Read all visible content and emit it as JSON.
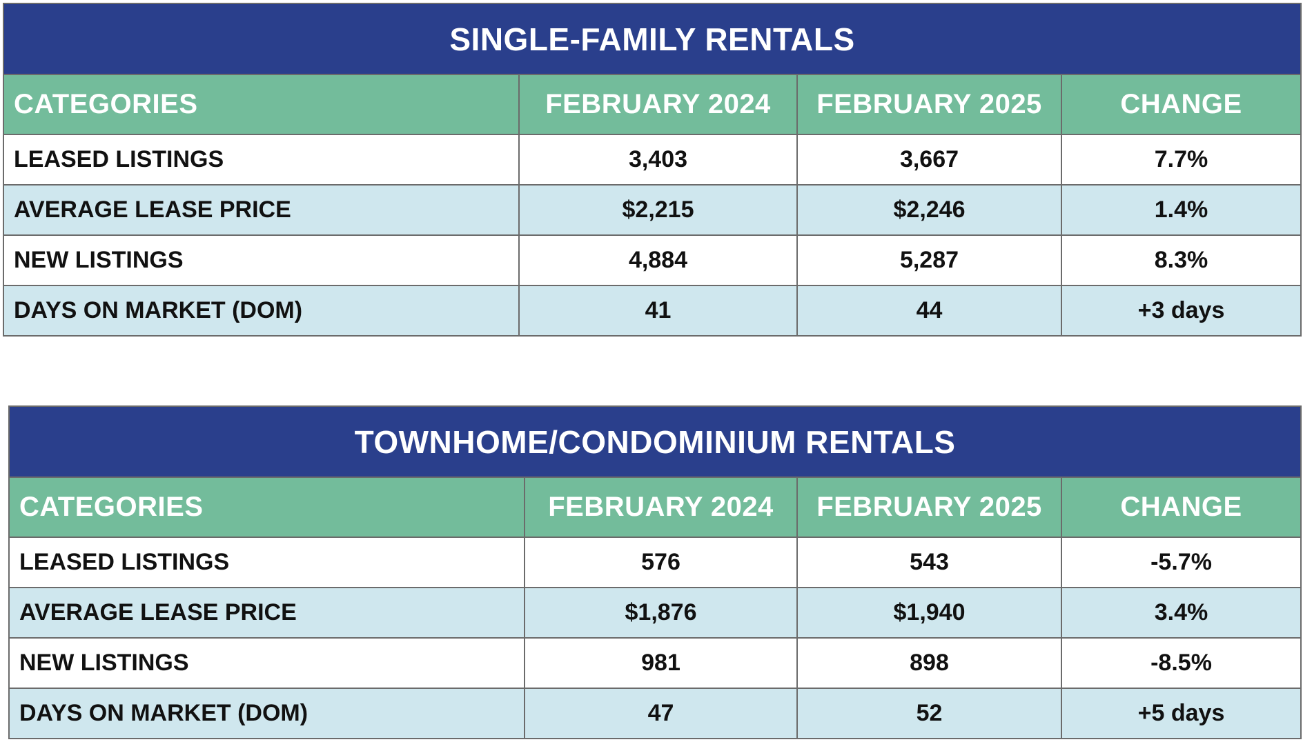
{
  "tables": [
    {
      "title": "SINGLE-FAMILY RENTALS",
      "headers": [
        "CATEGORIES",
        "FEBRUARY 2024",
        "FEBRUARY 2025",
        "CHANGE"
      ],
      "rows": [
        [
          "LEASED LISTINGS",
          "3,403",
          "3,667",
          "7.7%"
        ],
        [
          "AVERAGE LEASE PRICE",
          "$2,215",
          "$2,246",
          "1.4%"
        ],
        [
          "NEW LISTINGS",
          "4,884",
          "5,287",
          "8.3%"
        ],
        [
          "DAYS ON MARKET (DOM)",
          "41",
          "44",
          "+3 days"
        ]
      ]
    },
    {
      "title": "TOWNHOME/CONDOMINIUM RENTALS",
      "headers": [
        "CATEGORIES",
        "FEBRUARY 2024",
        "FEBRUARY 2025",
        "CHANGE"
      ],
      "rows": [
        [
          "LEASED LISTINGS",
          "576",
          "543",
          "-5.7%"
        ],
        [
          "AVERAGE LEASE PRICE",
          "$1,876",
          "$1,940",
          "3.4%"
        ],
        [
          "NEW LISTINGS",
          "981",
          "898",
          "-8.5%"
        ],
        [
          "DAYS ON MARKET (DOM)",
          "47",
          "52",
          "+5 days"
        ]
      ]
    }
  ],
  "colors": {
    "title_bg": "#2a3f8c",
    "header_bg": "#73bc9b",
    "row_alt_bg": "#cfe7ee",
    "row_bg": "#ffffff",
    "border": "#6b6b6b"
  }
}
